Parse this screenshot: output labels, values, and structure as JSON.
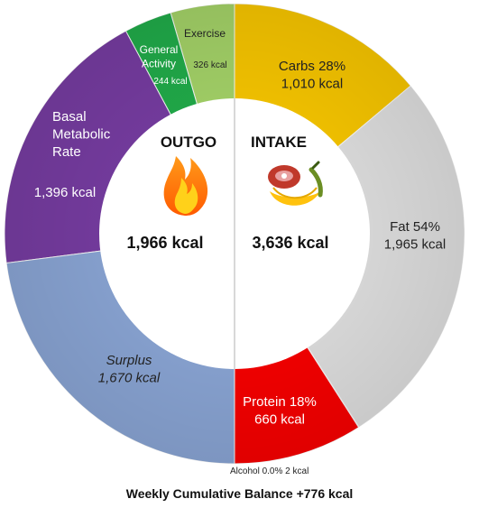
{
  "chart_data": {
    "type": "pie",
    "outgo": {
      "heading": "OUTGO",
      "total_label": "1,966 kcal",
      "segments": [
        {
          "name": "Exercise",
          "value": 326,
          "value_label": "326 kcal",
          "color": "#a9d96b"
        },
        {
          "name": "General Activity",
          "value": 244,
          "value_label": "244 kcal",
          "color": "#22b14c"
        },
        {
          "name": "Basal Metabolic Rate",
          "value": 1396,
          "value_label": "1,396 kcal",
          "color": "#7a3ea6"
        },
        {
          "name": "Surplus",
          "value": 1670,
          "value_label": "1,670 kcal",
          "color": "#8eaadb"
        }
      ]
    },
    "intake": {
      "heading": "INTAKE",
      "total_label": "3,636 kcal",
      "segments": [
        {
          "name": "Carbs",
          "percent": "28%",
          "value": 1010,
          "value_label": "1,010 kcal",
          "color": "#ffcc00"
        },
        {
          "name": "Fat",
          "percent": "54%",
          "value": 1965,
          "value_label": "1,965 kcal",
          "color": "#e5e5e5"
        },
        {
          "name": "Alcohol",
          "percent": "0.0%",
          "value": 2,
          "value_label": "2 kcal",
          "color": "#9e9e9e"
        },
        {
          "name": "Protein",
          "percent": "18%",
          "value": 660,
          "value_label": "660 kcal",
          "color": "#ff0000"
        }
      ]
    },
    "footer": "Weekly Cumulative Balance +776 kcal"
  },
  "icons": {
    "outgo": "flame-icon",
    "intake": "food-icon"
  }
}
